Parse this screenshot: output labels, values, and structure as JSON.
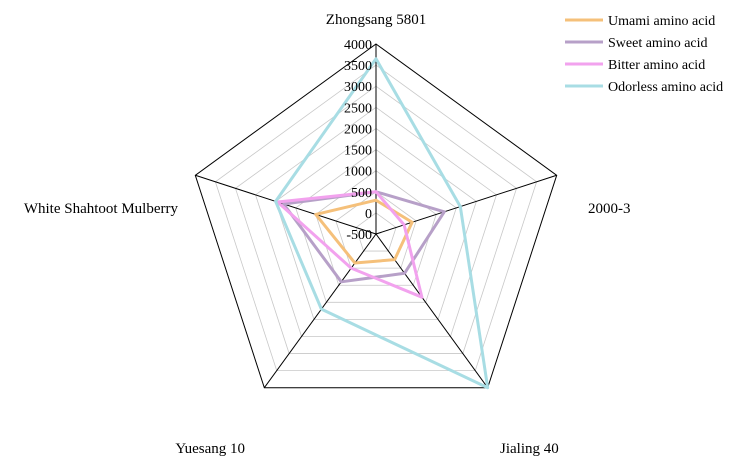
{
  "chart_data": {
    "type": "radar",
    "title": "",
    "categories": [
      "Zhongsang 5801",
      "2000-3",
      "Jialing 40",
      "Yuesang 10",
      "White Shahtoot Mulberry"
    ],
    "range": [
      -500,
      4000
    ],
    "ticks": [
      "-500",
      "0",
      "500",
      "1000",
      "1500",
      "2000",
      "2500",
      "3000",
      "3500",
      "4000"
    ],
    "grid": true,
    "legend_position": "top-right",
    "series": [
      {
        "name": "Umami amino acid",
        "color": "#f5c07a",
        "values": [
          300,
          400,
          250,
          350,
          1000
        ]
      },
      {
        "name": "Sweet amino acid",
        "color": "#b7a0c8",
        "values": [
          500,
          1200,
          650,
          900,
          1800
        ]
      },
      {
        "name": "Bitter amino acid",
        "color": "#f2a2ee",
        "values": [
          500,
          200,
          1350,
          500,
          1950
        ]
      },
      {
        "name": "Odorless amino acid",
        "color": "#a8dde4",
        "values": [
          3650,
          1600,
          4000,
          1700,
          2000
        ]
      }
    ]
  }
}
